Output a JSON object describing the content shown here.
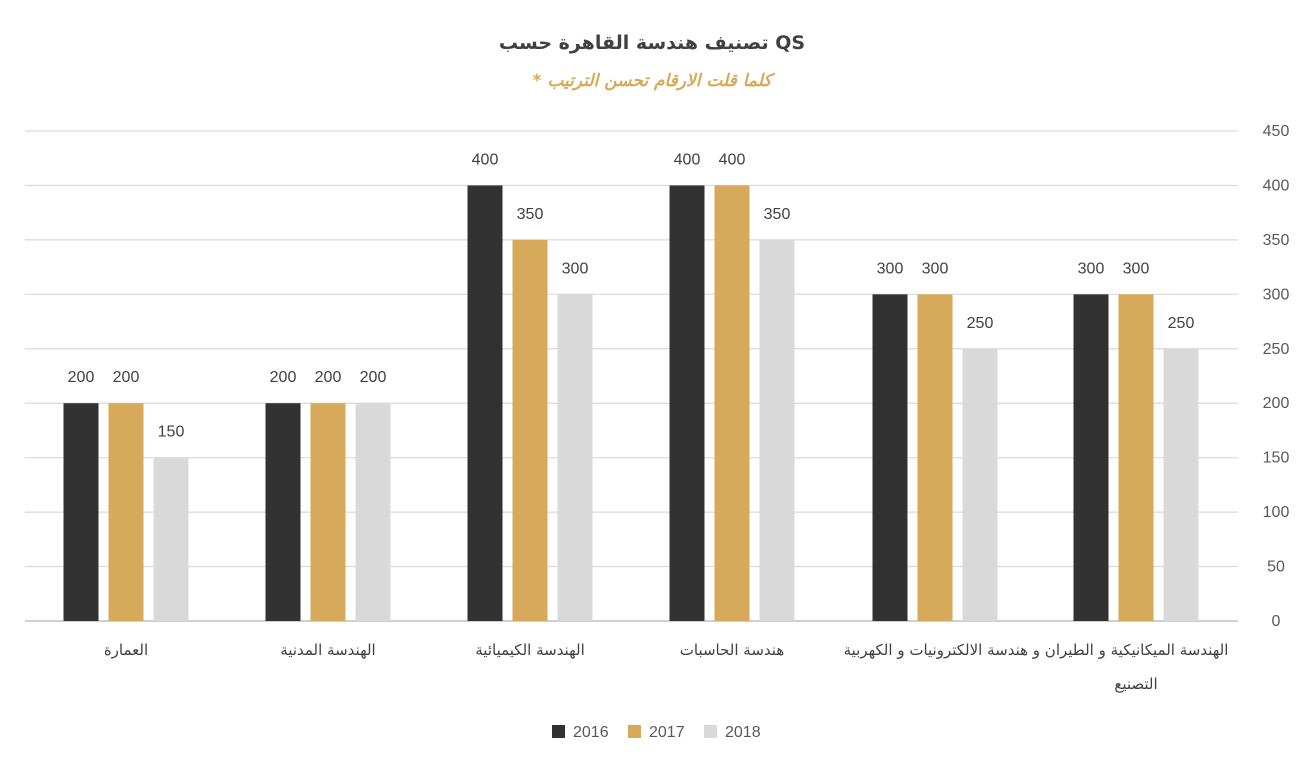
{
  "chart_data": {
    "type": "bar",
    "title": "تصنيف هندسة القاهرة حسب QS",
    "subtitle": "* كلما قلت الارقام تحسن الترتيب",
    "categories": [
      "العمارة",
      "الهندسة المدنية",
      "الهندسة الكيميائية",
      "هندسة الحاسبات",
      "الهندسة الميكانيكية و الطيران و هندسة الالكترونيات و الكهربية",
      "التصنيع"
    ],
    "series": [
      {
        "name": "2016",
        "values": [
          200,
          200,
          400,
          400,
          300,
          300
        ],
        "color": "#323232"
      },
      {
        "name": "2017",
        "values": [
          200,
          200,
          350,
          400,
          300,
          300
        ],
        "color": "#D6AA5A"
      },
      {
        "name": "2018",
        "values": [
          150,
          200,
          300,
          350,
          250,
          250
        ],
        "color": "#D9D9D9"
      }
    ],
    "ylim": [
      0,
      450
    ],
    "yticks": [
      0,
      50,
      100,
      150,
      200,
      250,
      300,
      350,
      400,
      450
    ],
    "xlabel": "",
    "ylabel": "",
    "grid": true,
    "legend_position": "bottom",
    "axis_side": "right"
  }
}
